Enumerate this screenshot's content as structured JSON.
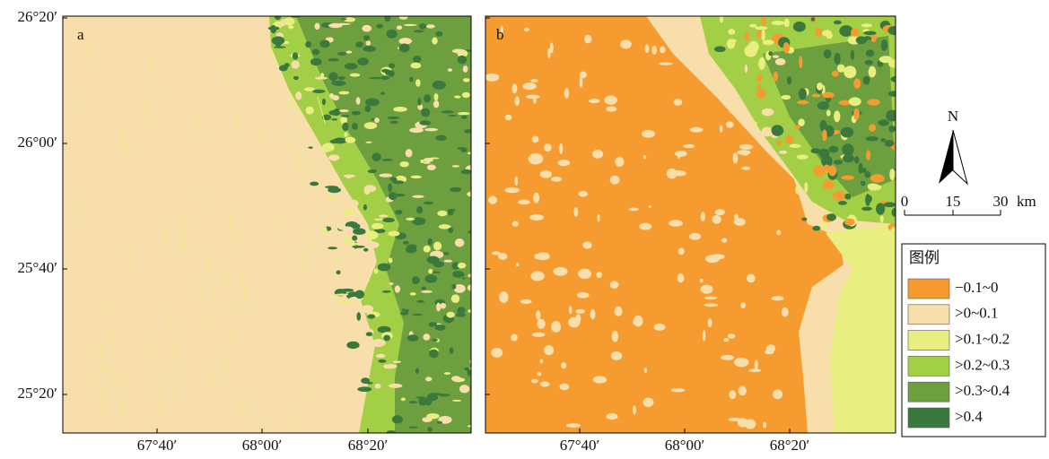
{
  "panels": [
    {
      "label": "a"
    },
    {
      "label": "b"
    }
  ],
  "y_axis_labels": [
    "26°20′",
    "26°00′",
    "25°40′",
    "25°20′"
  ],
  "x_axis_labels": [
    "67°40′",
    "68°00′",
    "68°20′"
  ],
  "north": "N",
  "scale_bar": {
    "labels": [
      "0",
      "15",
      "30"
    ],
    "unit": "km"
  },
  "legend": {
    "title": "图例",
    "items": [
      {
        "label": "−0.1~0",
        "color": "#f59b30"
      },
      {
        "label": ">0~0.1",
        "color": "#f7deab"
      },
      {
        "label": ">0.1~0.2",
        "color": "#e8ee80"
      },
      {
        "label": ">0.2~0.3",
        "color": "#a2cf45"
      },
      {
        "label": ">0.3~0.4",
        "color": "#6d9f3e"
      },
      {
        "label": ">0.4",
        "color": "#3b783c"
      }
    ]
  }
}
